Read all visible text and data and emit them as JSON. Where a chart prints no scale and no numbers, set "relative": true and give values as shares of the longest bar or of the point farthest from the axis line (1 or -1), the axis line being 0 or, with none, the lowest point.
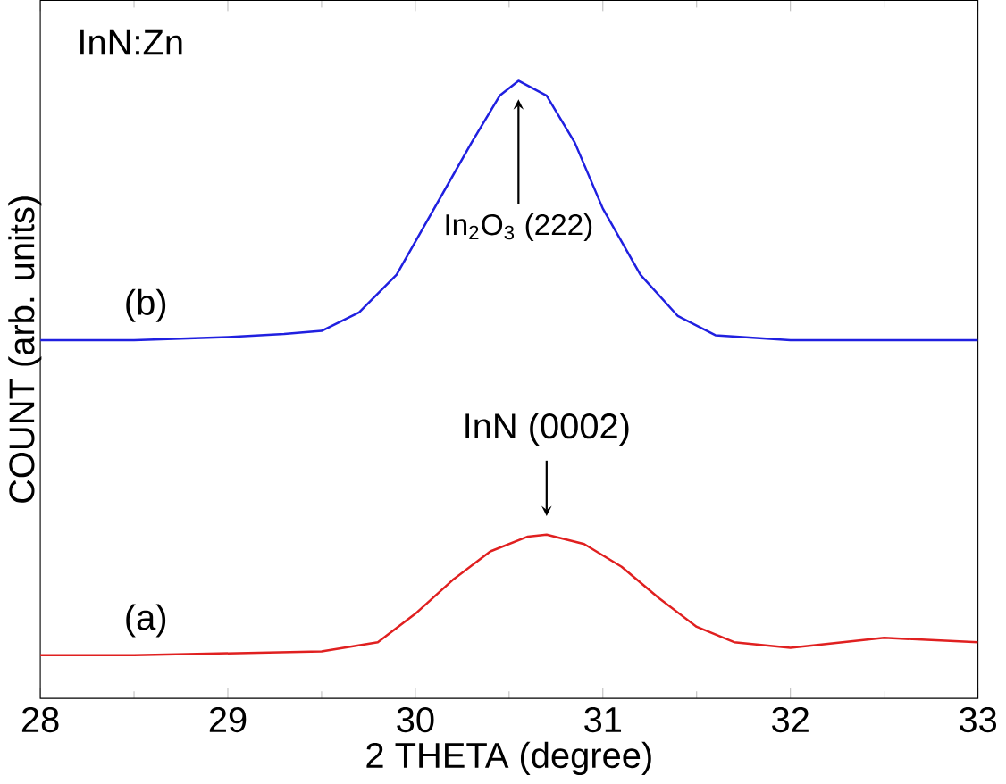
{
  "chart_data": {
    "type": "line",
    "relative": true,
    "xlabel": "2 THETA (degree)",
    "ylabel": "COUNT (arb. units)",
    "xlim": [
      28,
      33
    ],
    "xticks": [
      28,
      29,
      30,
      31,
      32,
      33
    ],
    "tick_labels": "x",
    "grid": false,
    "marker": "none",
    "line_style": "solid",
    "series": [
      {
        "name": "(a)",
        "color": "#e02020",
        "x": [
          28,
          28.5,
          29,
          29.5,
          29.8,
          30.0,
          30.2,
          30.4,
          30.6,
          30.7,
          30.9,
          31.1,
          31.3,
          31.5,
          31.7,
          32.0,
          32.5,
          33
        ],
        "values": [
          0.07,
          0.07,
          0.073,
          0.076,
          0.091,
          0.137,
          0.192,
          0.238,
          0.262,
          0.265,
          0.25,
          0.213,
          0.162,
          0.116,
          0.091,
          0.082,
          0.098,
          0.091
        ]
      },
      {
        "name": "(b)",
        "color": "#2020e0",
        "x": [
          28,
          28.5,
          29,
          29.3,
          29.5,
          29.7,
          29.9,
          30.1,
          30.3,
          30.45,
          30.55,
          30.7,
          30.85,
          31.0,
          31.2,
          31.4,
          31.6,
          32.0,
          32.5,
          33
        ],
        "values": [
          0.58,
          0.58,
          0.585,
          0.59,
          0.595,
          0.625,
          0.686,
          0.793,
          0.9,
          0.976,
          1.0,
          0.976,
          0.9,
          0.793,
          0.686,
          0.619,
          0.588,
          0.58,
          0.58,
          0.58
        ]
      }
    ],
    "annotations": [
      "InN:Zn",
      "In$_{2}$O$_{3}$ (222)",
      {
        "text": "InN (0002)",
        "x": 30.7,
        "y": 0.265
      }
    ]
  }
}
